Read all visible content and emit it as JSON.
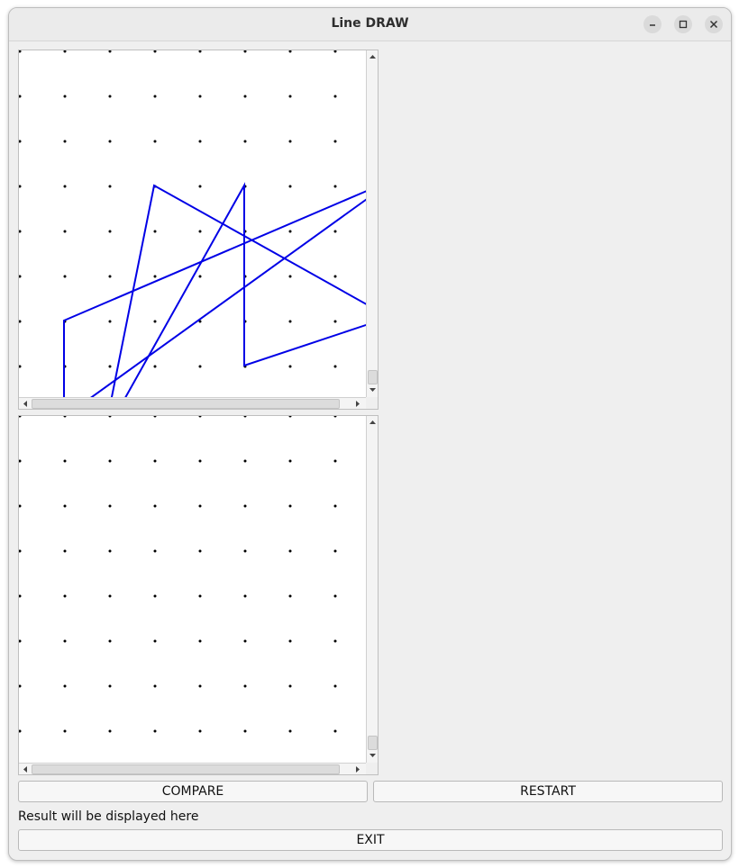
{
  "window": {
    "title": "Line DRAW",
    "controls": [
      "minimize-icon",
      "maximize-icon",
      "close-icon"
    ]
  },
  "canvases": {
    "dot_color": "#000000",
    "line_color": "#0000e6",
    "dot_spacing": 50
  },
  "buttons": {
    "compare_label": "COMPARE",
    "restart_label": "RESTART",
    "exit_label": "EXIT"
  },
  "result": {
    "text": "Result will be displayed here"
  }
}
